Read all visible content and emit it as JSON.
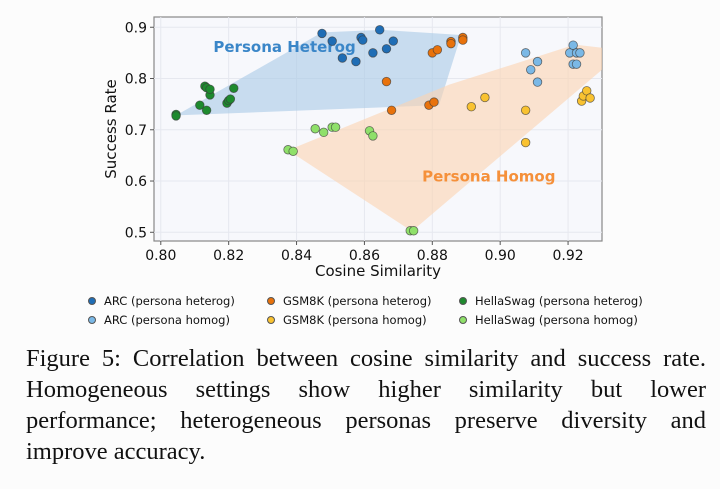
{
  "chart_data": {
    "type": "scatter",
    "title": "",
    "xlabel": "Cosine Similarity",
    "ylabel": "Success Rate",
    "xlim": [
      0.798,
      0.93
    ],
    "ylim": [
      0.483,
      0.92
    ],
    "xticks": [
      0.8,
      0.82,
      0.84,
      0.86,
      0.88,
      0.9,
      0.92
    ],
    "xtick_labels": [
      "0.80",
      "0.82",
      "0.84",
      "0.86",
      "0.88",
      "0.90",
      "0.92"
    ],
    "yticks": [
      0.5,
      0.6,
      0.7,
      0.8,
      0.9
    ],
    "ytick_labels": [
      "0.5",
      "0.6",
      "0.7",
      "0.8",
      "0.9"
    ],
    "grid": true,
    "legend_position": "bottom",
    "regions": [
      {
        "name": "Persona Heterog",
        "label": "Persona Heterog",
        "color": "#a9c9e6",
        "text_color": "#3a86c8",
        "label_at": [
          0.8155,
          0.852
        ],
        "hull": [
          [
            0.8045,
            0.728
          ],
          [
            0.8475,
            0.89
          ],
          [
            0.865,
            0.895
          ],
          [
            0.8885,
            0.885
          ],
          [
            0.882,
            0.748
          ],
          [
            0.8045,
            0.728
          ]
        ]
      },
      {
        "name": "Persona Homog",
        "label": "Persona Homog",
        "color": "#fcd3b0",
        "text_color": "#f5903a",
        "label_at": [
          0.877,
          0.599
        ],
        "hull": [
          [
            0.8375,
            0.66
          ],
          [
            0.885,
            0.788
          ],
          [
            0.922,
            0.866
          ],
          [
            0.93,
            0.86
          ],
          [
            0.93,
            0.817
          ],
          [
            0.874,
            0.502
          ],
          [
            0.8375,
            0.66
          ]
        ]
      }
    ],
    "series": [
      {
        "name": "ARC (persona heterog)",
        "color": "#1f6db5",
        "points": [
          [
            0.8475,
            0.888
          ],
          [
            0.8505,
            0.873
          ],
          [
            0.8535,
            0.84
          ],
          [
            0.8575,
            0.833
          ],
          [
            0.859,
            0.88
          ],
          [
            0.8595,
            0.875
          ],
          [
            0.8625,
            0.85
          ],
          [
            0.8645,
            0.895
          ],
          [
            0.8665,
            0.858
          ],
          [
            0.8685,
            0.873
          ]
        ]
      },
      {
        "name": "ARC (persona homog)",
        "color": "#7ab8e6",
        "points": [
          [
            0.9075,
            0.85
          ],
          [
            0.909,
            0.817
          ],
          [
            0.911,
            0.833
          ],
          [
            0.911,
            0.793
          ],
          [
            0.9205,
            0.85
          ],
          [
            0.9215,
            0.865
          ],
          [
            0.9215,
            0.828
          ],
          [
            0.9225,
            0.85
          ],
          [
            0.9225,
            0.828
          ],
          [
            0.9235,
            0.85
          ]
        ]
      },
      {
        "name": "GSM8K (persona heterog)",
        "color": "#e8720c",
        "points": [
          [
            0.8665,
            0.794
          ],
          [
            0.868,
            0.738
          ],
          [
            0.88,
            0.85
          ],
          [
            0.8815,
            0.856
          ],
          [
            0.879,
            0.748
          ],
          [
            0.8805,
            0.754
          ],
          [
            0.8855,
            0.872
          ],
          [
            0.8855,
            0.868
          ],
          [
            0.889,
            0.88
          ],
          [
            0.889,
            0.875
          ]
        ]
      },
      {
        "name": "GSM8K (persona homog)",
        "color": "#f9c230",
        "points": [
          [
            0.8915,
            0.745
          ],
          [
            0.8955,
            0.763
          ],
          [
            0.9075,
            0.738
          ],
          [
            0.9075,
            0.675
          ],
          [
            0.924,
            0.756
          ],
          [
            0.9245,
            0.766
          ],
          [
            0.9255,
            0.776
          ],
          [
            0.9265,
            0.762
          ]
        ]
      },
      {
        "name": "HellaSwag (persona heterog)",
        "color": "#1e8a2e",
        "points": [
          [
            0.8045,
            0.73
          ],
          [
            0.8045,
            0.727
          ],
          [
            0.8115,
            0.748
          ],
          [
            0.813,
            0.785
          ],
          [
            0.8135,
            0.782
          ],
          [
            0.8135,
            0.738
          ],
          [
            0.8145,
            0.768
          ],
          [
            0.8145,
            0.779
          ],
          [
            0.8195,
            0.752
          ],
          [
            0.82,
            0.757
          ],
          [
            0.8205,
            0.76
          ],
          [
            0.8215,
            0.781
          ]
        ]
      },
      {
        "name": "HellaSwag (persona homog)",
        "color": "#8fe06a",
        "points": [
          [
            0.8375,
            0.661
          ],
          [
            0.839,
            0.658
          ],
          [
            0.8455,
            0.702
          ],
          [
            0.848,
            0.695
          ],
          [
            0.8505,
            0.705
          ],
          [
            0.8515,
            0.705
          ],
          [
            0.8615,
            0.698
          ],
          [
            0.8625,
            0.688
          ],
          [
            0.8735,
            0.503
          ],
          [
            0.8745,
            0.503
          ]
        ]
      }
    ]
  },
  "legend": {
    "rows": [
      [
        {
          "label": "ARC (persona heterog)",
          "color": "#1f6db5"
        },
        {
          "label": "GSM8K (persona heterog)",
          "color": "#e8720c"
        },
        {
          "label": "HellaSwag (persona heterog)",
          "color": "#1e8a2e"
        }
      ],
      [
        {
          "label": "ARC (persona homog)",
          "color": "#7ab8e6"
        },
        {
          "label": "GSM8K (persona homog)",
          "color": "#f9c230"
        },
        {
          "label": "HellaSwag (persona homog)",
          "color": "#8fe06a"
        }
      ]
    ]
  },
  "caption": "Figure 5: Correlation between cosine similarity and success rate. Homogeneous settings show higher similarity but lower performance; heterogeneous personas preserve diversity and improve accuracy."
}
